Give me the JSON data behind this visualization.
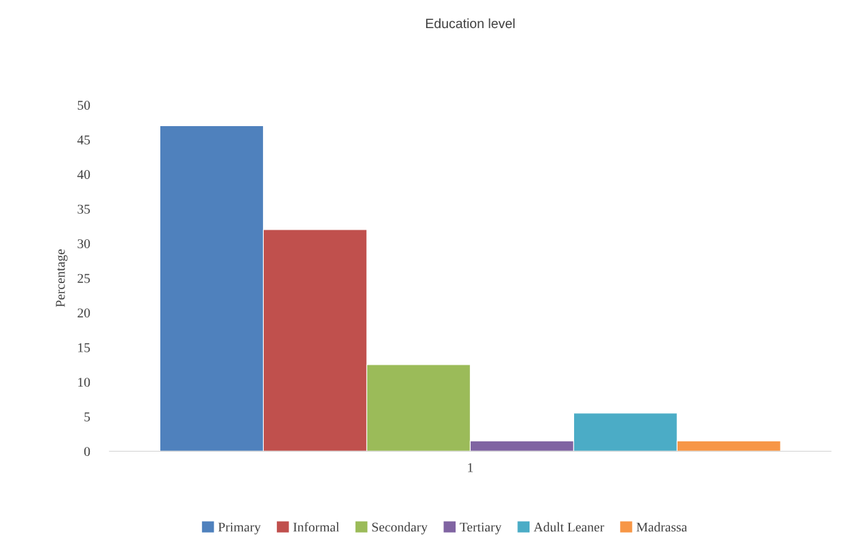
{
  "chart_data": {
    "type": "bar",
    "title": "Education level",
    "ylabel": "Percentage",
    "categories": [
      "1"
    ],
    "series": [
      {
        "name": "Primary",
        "color": "#4f81bd",
        "values": [
          47
        ]
      },
      {
        "name": "Informal",
        "color": "#c0504d",
        "values": [
          32
        ]
      },
      {
        "name": "Secondary",
        "color": "#9bbb59",
        "values": [
          12.5
        ]
      },
      {
        "name": "Tertiary",
        "color": "#8064a2",
        "values": [
          1.5
        ]
      },
      {
        "name": "Adult Leaner",
        "color": "#4bacc6",
        "values": [
          5.5
        ]
      },
      {
        "name": "Madrassa",
        "color": "#f79646",
        "values": [
          1.5
        ]
      }
    ],
    "ylim": [
      0,
      50
    ],
    "yticks": [
      0,
      5,
      10,
      15,
      20,
      25,
      30,
      35,
      40,
      45,
      50
    ],
    "grid": false,
    "legend": "bottom"
  }
}
